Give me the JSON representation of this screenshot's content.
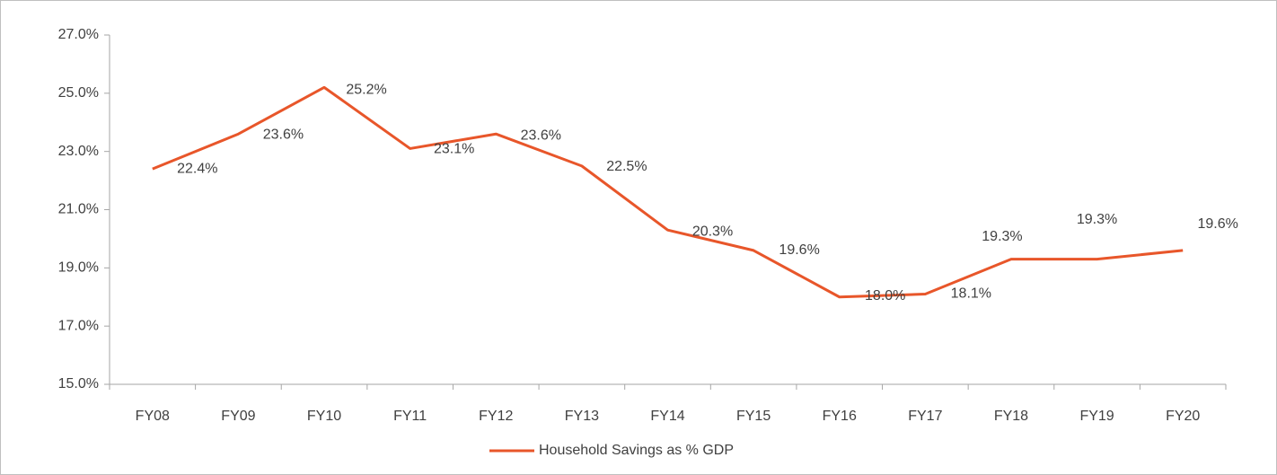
{
  "chart_data": {
    "type": "line",
    "categories": [
      "FY08",
      "FY09",
      "FY10",
      "FY11",
      "FY12",
      "FY13",
      "FY14",
      "FY15",
      "FY16",
      "FY17",
      "FY18",
      "FY19",
      "FY20"
    ],
    "series": [
      {
        "name": "Household Savings as % GDP",
        "color": "#e8562a",
        "values": [
          22.4,
          23.6,
          25.2,
          23.1,
          23.6,
          22.5,
          20.3,
          19.6,
          18.0,
          18.1,
          19.3,
          19.3,
          19.6
        ],
        "value_labels": [
          "22.4%",
          "23.6%",
          "25.2%",
          "23.1%",
          "23.6%",
          "22.5%",
          "20.3%",
          "19.6%",
          "18.0%",
          "18.1%",
          "19.3%",
          "19.3%",
          "19.6%"
        ]
      }
    ],
    "ylim": [
      15,
      27
    ],
    "yticks": [
      {
        "value": 15,
        "label": "15.0%"
      },
      {
        "value": 17,
        "label": "17.0%"
      },
      {
        "value": 19,
        "label": "19.0%"
      },
      {
        "value": 21,
        "label": "21.0%"
      },
      {
        "value": 23,
        "label": "23.0%"
      },
      {
        "value": 25,
        "label": "25.0%"
      },
      {
        "value": 27,
        "label": "27.0%"
      }
    ],
    "grid": false,
    "legend": "bottom"
  }
}
